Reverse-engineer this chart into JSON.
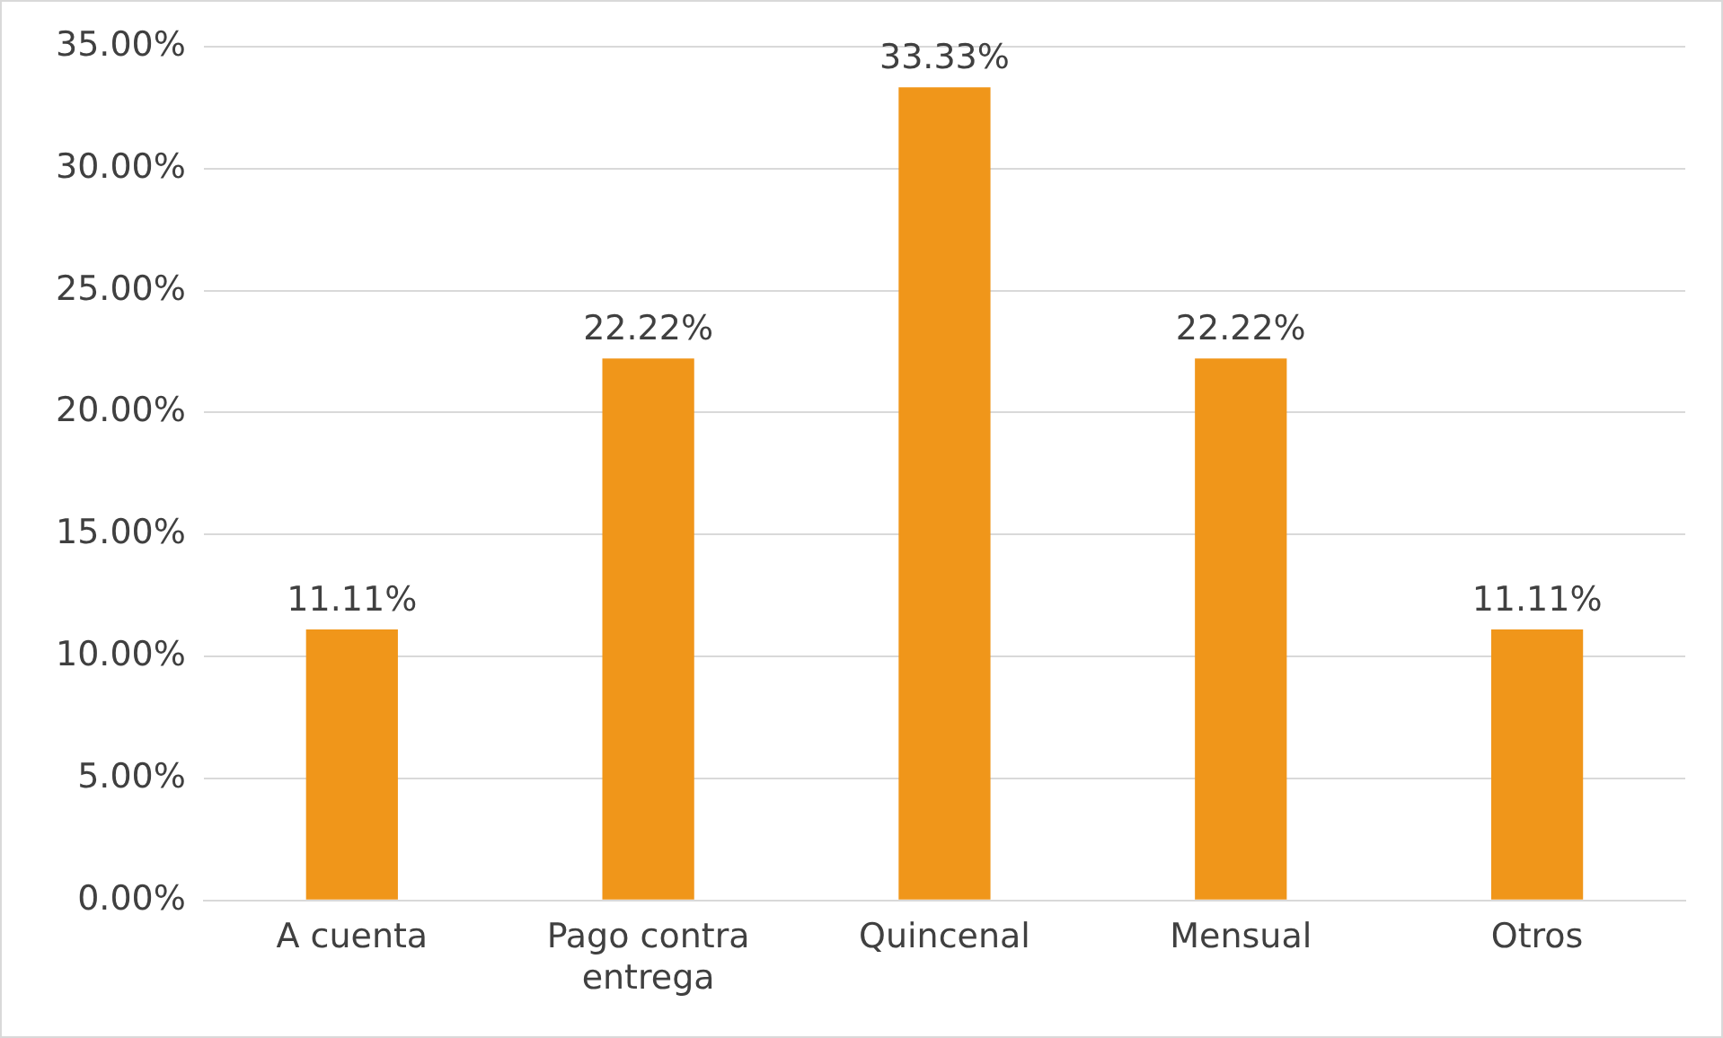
{
  "chart_data": {
    "type": "bar",
    "categories": [
      "A cuenta",
      "Pago contra entrega",
      "Quincenal",
      "Mensual",
      "Otros"
    ],
    "values": [
      11.11,
      22.22,
      33.33,
      22.22,
      11.11
    ],
    "value_labels": [
      "11.11%",
      "22.22%",
      "33.33%",
      "22.22%",
      "11.11%"
    ],
    "color": "#f0961a",
    "ylim": [
      0,
      35
    ],
    "yticks": [
      {
        "value": 0,
        "label": "0.00%"
      },
      {
        "value": 5,
        "label": "5.00%"
      },
      {
        "value": 10,
        "label": "10.00%"
      },
      {
        "value": 15,
        "label": "15.00%"
      },
      {
        "value": 20,
        "label": "20.00%"
      },
      {
        "value": 25,
        "label": "25.00%"
      },
      {
        "value": 30,
        "label": "30.00%"
      },
      {
        "value": 35,
        "label": "35.00%"
      }
    ],
    "grid": "y",
    "legend": false
  }
}
